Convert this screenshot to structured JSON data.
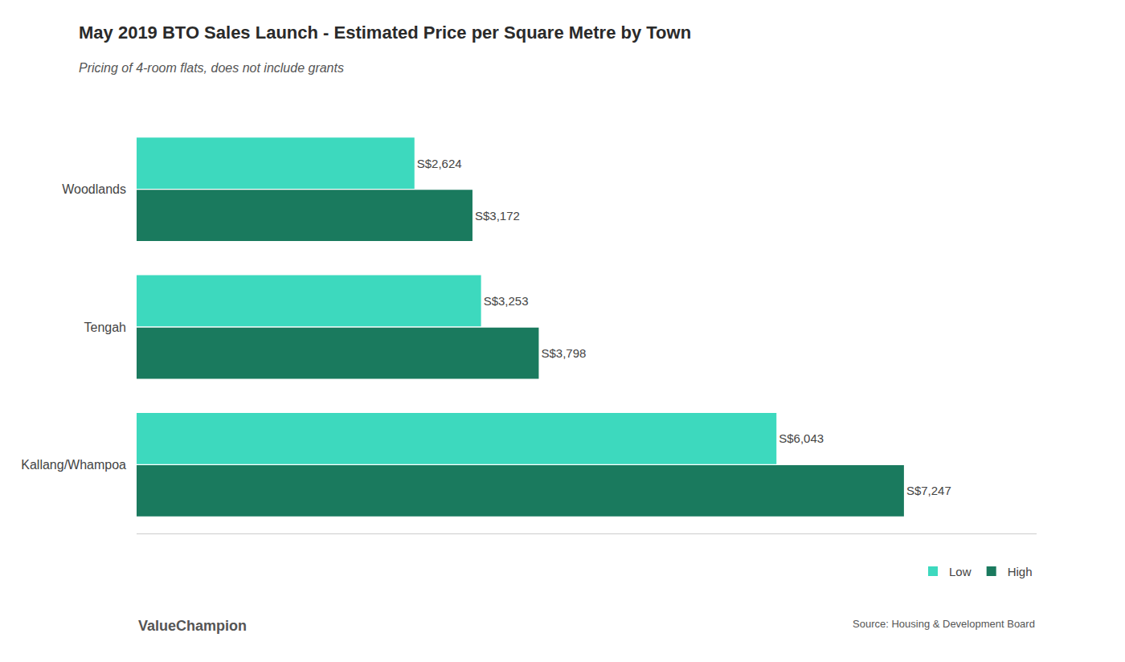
{
  "chart_data": {
    "type": "bar",
    "orientation": "horizontal",
    "title": "May 2019 BTO Sales Launch - Estimated Price per Square Metre by Town",
    "subtitle": "Pricing of 4-room flats, does not include grants",
    "annotations": [
      "Source: Housing & Development Board",
      "ValueChampion"
    ],
    "categories": [
      "Kallang/Whampoa",
      "Tengah",
      "Woodlands"
    ],
    "series": [
      {
        "name": "Low",
        "color": "#3DD9BE",
        "values": [
          6043,
          3253,
          2624
        ],
        "value_labels": [
          "S$6,043",
          "S$3,253",
          "S$2,624"
        ]
      },
      {
        "name": "High",
        "color": "#1A7A5E",
        "values": [
          7247,
          3798,
          3172
        ],
        "value_labels": [
          "S$7,247",
          "S$3,798",
          "S$3,172"
        ]
      }
    ],
    "xlim": [
      0,
      8500
    ],
    "tick_labels": "y",
    "data_labels": true,
    "grid": false,
    "legend": "lower right"
  }
}
